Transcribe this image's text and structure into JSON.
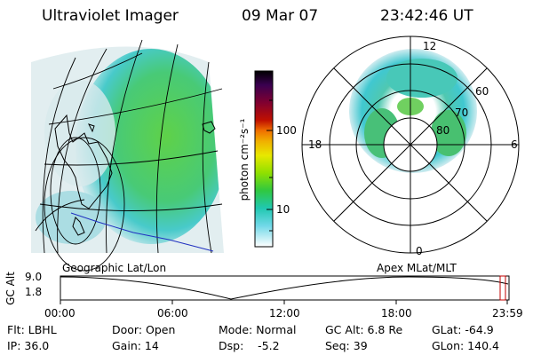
{
  "header": {
    "instrument": "Ultraviolet Imager",
    "date": "09 Mar 07",
    "time": "23:42:46 UT"
  },
  "left_panel": {
    "label": "Geographic Lat/Lon"
  },
  "colorbar": {
    "unit": "photon cm⁻²s⁻¹",
    "ticks": [
      "100",
      "10"
    ],
    "colors": [
      "#000000",
      "#3a0050",
      "#6a0040",
      "#a00000",
      "#d02000",
      "#f07000",
      "#f0b000",
      "#e8e800",
      "#a0e000",
      "#50d020",
      "#20c060",
      "#20c8c0",
      "#60d8e0",
      "#b0e8f0",
      "#ffffff"
    ]
  },
  "right_panel": {
    "label": "Apex MLat/MLT",
    "mlt_labels": {
      "top": "12",
      "left": "18",
      "right": "6",
      "bottom": "0"
    },
    "lat_labels": [
      "60",
      "70",
      "80"
    ]
  },
  "altitude_plot": {
    "ylabel": "GC Alt",
    "y_ticks": [
      "9.0",
      "1.8"
    ],
    "x_ticks": [
      "00:00",
      "06:00",
      "12:00",
      "18:00",
      "23:59"
    ]
  },
  "info": {
    "flt": "Flt: LBHL",
    "ip": "IP: 36.0",
    "door": "Door: Open",
    "gain": "Gain: 14",
    "mode": "Mode: Normal",
    "dsp": "Dsp:    -5.2",
    "gc_alt": "GC Alt: 6.8 Re",
    "seq": "Seq: 39",
    "glat": "GLat: -64.9",
    "glon": "GLon: 140.4"
  }
}
